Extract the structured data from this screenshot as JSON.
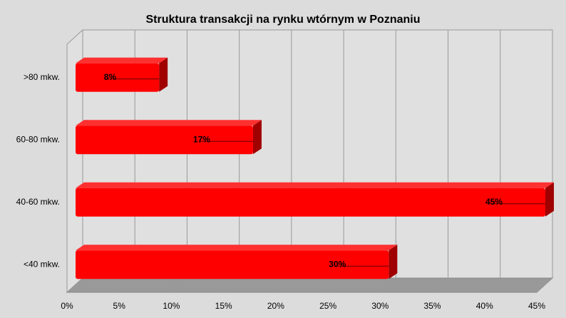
{
  "chart_data": {
    "type": "bar",
    "orientation": "horizontal",
    "title": "Struktura transakcji na rynku wtórnym w Poznaniu",
    "categories": [
      ">80 mkw.",
      "60-80 mkw.",
      "40-60 mkw.",
      "<40 mkw."
    ],
    "values": [
      8,
      17,
      45,
      30
    ],
    "value_labels": [
      "8%",
      "17%",
      "45%",
      "30%"
    ],
    "color": "#ff0000",
    "xlim": [
      0,
      45
    ],
    "xticks": [
      {
        "value": 0,
        "label": "0%"
      },
      {
        "value": 5,
        "label": "5%"
      },
      {
        "value": 10,
        "label": "10%"
      },
      {
        "value": 15,
        "label": "15%"
      },
      {
        "value": 20,
        "label": "20%"
      },
      {
        "value": 25,
        "label": "25%"
      },
      {
        "value": 30,
        "label": "30%"
      },
      {
        "value": 35,
        "label": "35%"
      },
      {
        "value": 40,
        "label": "40%"
      },
      {
        "value": 45,
        "label": "45%"
      }
    ],
    "grid": true
  }
}
